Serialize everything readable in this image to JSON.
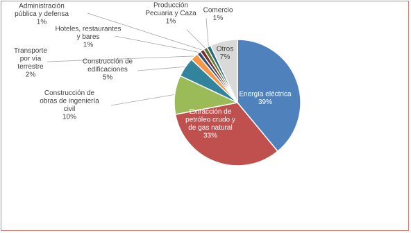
{
  "chart_data": {
    "type": "pie",
    "title": "",
    "slices": [
      {
        "label": "Energía eléctrica",
        "value": 39,
        "pct_label": "39%",
        "color": "#4f81bd"
      },
      {
        "label": "Extracción de petróleo crudo y de gas natural",
        "value": 33,
        "pct_label": "33%",
        "color": "#c0504d"
      },
      {
        "label": "Construcción de obras de ingeniería civil",
        "value": 10,
        "pct_label": "10%",
        "color": "#9bbb59"
      },
      {
        "label": "Construcción de edificaciones",
        "value": 5,
        "pct_label": "5%",
        "color": "#31849b"
      },
      {
        "label": "Transporte por vía terrestre",
        "value": 2,
        "pct_label": "2%",
        "color": "#f79646"
      },
      {
        "label": "Hoteles, restaurantes y bares",
        "value": 1,
        "pct_label": "1%",
        "color": "#2c4d75"
      },
      {
        "label": "Administración pública y defensa",
        "value": 1,
        "pct_label": "1%",
        "color": "#772c2a"
      },
      {
        "label": "Producción Pecuaria y Caza",
        "value": 1,
        "pct_label": "1%",
        "color": "#5f7530"
      },
      {
        "label": "Comercio",
        "value": 1,
        "pct_label": "1%",
        "color": "#276a7c"
      },
      {
        "label": "Otros",
        "value": 7,
        "pct_label": "7%",
        "color": "#d9d9d9"
      }
    ],
    "label_lines": [
      [
        "Energía eléctrica",
        "39%"
      ],
      [
        "Extracción de",
        "petróleo crudo y",
        "de gas natural",
        "33%"
      ],
      [
        "Construcción de",
        "obras de ingeniería",
        "civil",
        "10%"
      ],
      [
        "Construcción de",
        "edificaciones",
        "5%"
      ],
      [
        "Transporte",
        "por vía",
        "terrestre",
        "2%"
      ],
      [
        "Hoteles, restaurantes",
        "y bares",
        "1%"
      ],
      [
        "Administración",
        "pública y defensa",
        "1%"
      ],
      [
        "Producción",
        "Pecuaria y Caza",
        "1%"
      ],
      [
        "Comercio",
        "1%"
      ],
      [
        "Otros",
        "7%"
      ]
    ],
    "legend": "none"
  }
}
